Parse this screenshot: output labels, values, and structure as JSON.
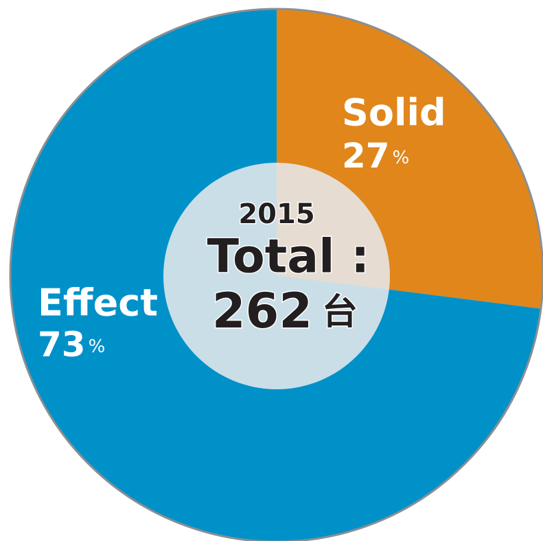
{
  "chart_data": {
    "type": "pie",
    "categories": [
      "Solid",
      "Effect"
    ],
    "values": [
      27,
      73
    ],
    "unit": "%",
    "colors": [
      "#e0861b",
      "#0091c9"
    ],
    "year": "2015",
    "total_label": "Total :",
    "total": 262,
    "total_unit": "台"
  }
}
